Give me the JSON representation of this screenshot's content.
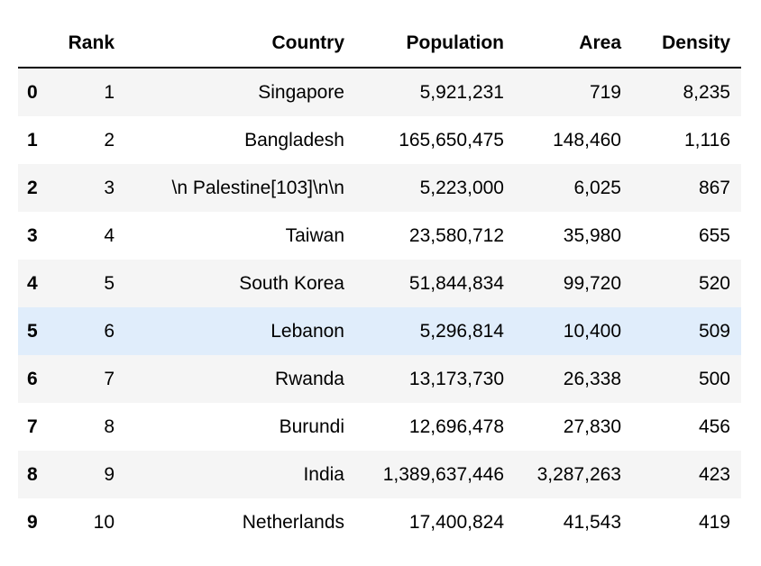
{
  "table": {
    "columns": [
      "",
      "Rank",
      "Country",
      "Population",
      "Area",
      "Density"
    ],
    "rows": [
      {
        "index": "0",
        "rank": "1",
        "country": "Singapore",
        "population": "5,921,231",
        "area": "719",
        "density": "8,235"
      },
      {
        "index": "1",
        "rank": "2",
        "country": "Bangladesh",
        "population": "165,650,475",
        "area": "148,460",
        "density": "1,116"
      },
      {
        "index": "2",
        "rank": "3",
        "country": "\\n Palestine[103]\\n\\n",
        "population": "5,223,000",
        "area": "6,025",
        "density": "867"
      },
      {
        "index": "3",
        "rank": "4",
        "country": "Taiwan",
        "population": "23,580,712",
        "area": "35,980",
        "density": "655"
      },
      {
        "index": "4",
        "rank": "5",
        "country": "South Korea",
        "population": "51,844,834",
        "area": "99,720",
        "density": "520"
      },
      {
        "index": "5",
        "rank": "6",
        "country": "Lebanon",
        "population": "5,296,814",
        "area": "10,400",
        "density": "509"
      },
      {
        "index": "6",
        "rank": "7",
        "country": "Rwanda",
        "population": "13,173,730",
        "area": "26,338",
        "density": "500"
      },
      {
        "index": "7",
        "rank": "8",
        "country": "Burundi",
        "population": "12,696,478",
        "area": "27,830",
        "density": "456"
      },
      {
        "index": "8",
        "rank": "9",
        "country": "India",
        "population": "1,389,637,446",
        "area": "3,287,263",
        "density": "423"
      },
      {
        "index": "9",
        "rank": "10",
        "country": "Netherlands",
        "population": "17,400,824",
        "area": "41,543",
        "density": "419"
      }
    ],
    "highlighted_row_index": "5",
    "colors": {
      "stripe": "#f5f5f5",
      "hover_highlight": "#e0edfb",
      "header_rule": "#000000"
    }
  }
}
